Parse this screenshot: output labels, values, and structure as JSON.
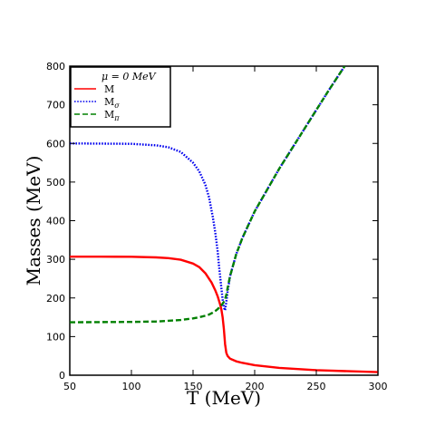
{
  "chart_data": {
    "type": "line",
    "xlabel": "T (MeV)",
    "ylabel": "Masses (MeV)",
    "xlim": [
      50,
      300
    ],
    "ylim": [
      0,
      800
    ],
    "xticks": [
      50,
      100,
      150,
      200,
      250,
      300
    ],
    "yticks": [
      0,
      100,
      200,
      300,
      400,
      500,
      600,
      700,
      800
    ],
    "grid": false,
    "legend_position": "top-left",
    "legend_title": "μ = 0 MeV",
    "series": [
      {
        "name": "M",
        "name_base": "M",
        "name_sub": "",
        "color": "#ff0000",
        "style": "solid",
        "x": [
          50,
          75,
          100,
          120,
          130,
          140,
          150,
          155,
          160,
          165,
          168,
          170,
          172,
          173,
          174,
          175,
          176,
          177,
          178,
          180,
          185,
          190,
          200,
          220,
          250,
          300
        ],
        "y": [
          307,
          307,
          306.5,
          305,
          303,
          299,
          289,
          280,
          264,
          240,
          220,
          204,
          183,
          170,
          150,
          120,
          80,
          58,
          50,
          43,
          36,
          32,
          26,
          19,
          13,
          8
        ]
      },
      {
        "name": "Mσ",
        "name_base": "M",
        "name_sub": "σ",
        "color": "#0000ee",
        "style": "dotted",
        "x": [
          50,
          100,
          120,
          130,
          140,
          150,
          155,
          160,
          163,
          166,
          168,
          170,
          171,
          172,
          173,
          174,
          175,
          176,
          177,
          178,
          180,
          185,
          190,
          200,
          220,
          240,
          260,
          273
        ],
        "y": [
          600,
          599,
          595,
          590,
          578,
          550,
          528,
          493,
          460,
          410,
          370,
          320,
          285,
          255,
          225,
          196,
          176,
          168,
          190,
          215,
          256,
          313,
          355,
          424,
          535,
          636,
          737,
          800
        ]
      },
      {
        "name": "Mπ",
        "name_base": "M",
        "name_sub": "π",
        "color": "#008000",
        "style": "dashed",
        "x": [
          50,
          100,
          120,
          130,
          140,
          150,
          155,
          160,
          163,
          166,
          168,
          170,
          172,
          174,
          175,
          176,
          177,
          178,
          180,
          185,
          190,
          200,
          220,
          240,
          260,
          273
        ],
        "y": [
          137,
          138,
          139,
          141,
          143,
          147,
          150,
          154,
          157,
          162,
          166,
          171,
          178,
          185,
          190,
          197,
          208,
          225,
          256,
          313,
          355,
          424,
          535,
          636,
          737,
          800
        ]
      }
    ]
  }
}
